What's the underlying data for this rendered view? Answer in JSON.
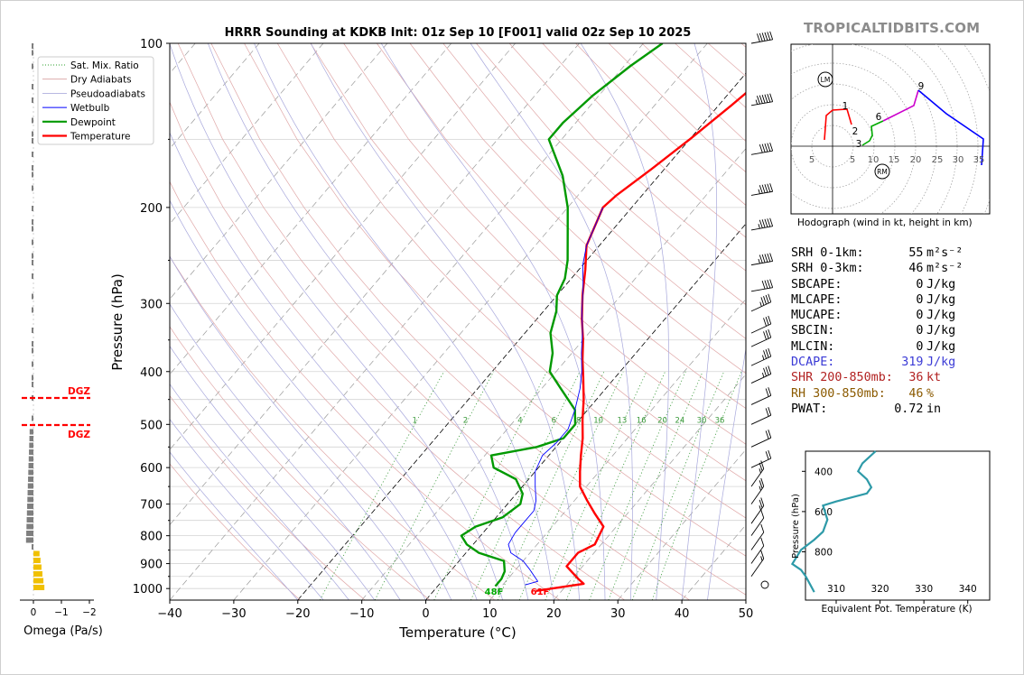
{
  "watermark": "TROPICALTIDBITS.COM",
  "chart_data": [
    {
      "type": "line",
      "title": "HRRR Sounding at KDKB Init: 01z Sep 10 [F001] valid 02z Sep 10 2025",
      "xlabel": "Temperature (°C)",
      "ylabel": "Pressure (hPa)",
      "y_scale": "log",
      "x_ticks": [
        -40,
        -30,
        -20,
        -10,
        0,
        10,
        20,
        30,
        40,
        50
      ],
      "y_ticks": [
        100,
        200,
        300,
        400,
        500,
        600,
        700,
        800,
        900,
        1000
      ],
      "ylim": [
        1050,
        100
      ],
      "xlim": [
        -40,
        50
      ],
      "grid": true,
      "legend_position": "top-left",
      "legend": [
        {
          "label": "Sat. Mix. Ratio",
          "color": "#2ca02c"
        },
        {
          "label": "Dry Adiabats",
          "color": "#d9a0a0"
        },
        {
          "label": "Pseudoadiabats",
          "color": "#a0a0d8"
        },
        {
          "label": "Wetbulb",
          "color": "#0000ff"
        },
        {
          "label": "Dewpoint",
          "color": "#009900"
        },
        {
          "label": "Temperature",
          "color": "#ff0000"
        }
      ],
      "mixing_ratio_labels": [
        "1",
        "2",
        "4",
        "6",
        "8",
        "10",
        "13",
        "16",
        "20",
        "24",
        "30",
        "36"
      ],
      "surface_labels": {
        "dewpoint": "48F",
        "temperature": "61F"
      },
      "series": [
        {
          "name": "Temperature",
          "color": "#ff0000",
          "points": [
            [
              16,
              1010
            ],
            [
              22.5,
              980
            ],
            [
              21,
              960
            ],
            [
              17.5,
              910
            ],
            [
              17.5,
              860
            ],
            [
              19,
              830
            ],
            [
              18.5,
              800
            ],
            [
              18,
              770
            ],
            [
              15,
              730
            ],
            [
              12,
              690
            ],
            [
              9,
              650
            ],
            [
              7,
              610
            ],
            [
              5,
              570
            ],
            [
              3,
              530
            ],
            [
              0.5,
              490
            ],
            [
              -2,
              450
            ],
            [
              -5,
              410
            ],
            [
              -7.5,
              380
            ],
            [
              -10,
              350
            ],
            [
              -13,
              320
            ],
            [
              -16,
              290
            ],
            [
              -19,
              260
            ],
            [
              -22,
              235
            ],
            [
              -24.5,
              200
            ],
            [
              -24,
              190
            ],
            [
              -22,
              170
            ],
            [
              -20,
              150
            ],
            [
              -18,
              130
            ],
            [
              -17,
              120
            ],
            [
              -15,
              110
            ],
            [
              -13,
              100
            ]
          ]
        },
        {
          "name": "Dewpoint",
          "color": "#009900",
          "points": [
            [
              9,
              990
            ],
            [
              9,
              960
            ],
            [
              8.5,
              930
            ],
            [
              7,
              890
            ],
            [
              2,
              860
            ],
            [
              -1,
              830
            ],
            [
              -3,
              800
            ],
            [
              -2,
              770
            ],
            [
              1,
              740
            ],
            [
              2,
              700
            ],
            [
              1,
              670
            ],
            [
              -2,
              630
            ],
            [
              -7,
              600
            ],
            [
              -9,
              570
            ],
            [
              -3,
              550
            ],
            [
              0,
              530
            ],
            [
              0,
              500
            ],
            [
              -2,
              470
            ],
            [
              -7,
              430
            ],
            [
              -11,
              400
            ],
            [
              -13,
              370
            ],
            [
              -16,
              340
            ],
            [
              -18,
              310
            ],
            [
              -20,
              290
            ],
            [
              -21,
              270
            ],
            [
              -23,
              250
            ],
            [
              -27,
              220
            ],
            [
              -30,
              200
            ],
            [
              -35,
              175
            ],
            [
              -42,
              150
            ],
            [
              -42,
              140
            ],
            [
              -41,
              125
            ],
            [
              -39,
              110
            ],
            [
              -37,
              100
            ]
          ]
        },
        {
          "name": "Wetbulb",
          "color": "#0000ff",
          "points": [
            [
              13.5,
              985
            ],
            [
              15,
              970
            ],
            [
              12,
              920
            ],
            [
              10,
              890
            ],
            [
              7,
              860
            ],
            [
              5.5,
              830
            ],
            [
              5,
              790
            ],
            [
              5,
              760
            ],
            [
              5,
              720
            ],
            [
              4,
              690
            ],
            [
              2,
              650
            ],
            [
              0,
              610
            ],
            [
              -1,
              570
            ],
            [
              -0.5,
              540
            ],
            [
              -0.5,
              510
            ],
            [
              -2,
              470
            ],
            [
              -4,
              430
            ],
            [
              -6,
              400
            ],
            [
              -8.5,
              370
            ],
            [
              -11,
              340
            ],
            [
              -14,
              310
            ],
            [
              -17,
              280
            ],
            [
              -20,
              255
            ],
            [
              -22,
              235
            ],
            [
              -24.5,
              200
            ]
          ]
        }
      ]
    },
    {
      "type": "bar",
      "xlabel": "Omega (Pa/s)",
      "x_ticks": [
        "0",
        "−1",
        "−2"
      ],
      "annotations": [
        "DGZ",
        "DGZ"
      ]
    },
    {
      "type": "line",
      "title": "Hodograph (wind in kt, height in km)",
      "ring_labels": [
        "5",
        "5",
        "10",
        "15",
        "20",
        "25",
        "30",
        "35"
      ],
      "height_labels": [
        "1",
        "2",
        "3",
        "6",
        "9"
      ],
      "markers": [
        "LM",
        "RM"
      ]
    },
    {
      "type": "line",
      "xlabel": "Equivalent Pot. Temperature (K)",
      "ylabel": "Pressure (hPa)",
      "x_ticks": [
        "310",
        "320",
        "330",
        "340"
      ],
      "y_ticks": [
        "400",
        "600",
        "800"
      ],
      "series": [
        {
          "color": "#2e9aa8",
          "points": [
            [
              319,
              300
            ],
            [
              316,
              360
            ],
            [
              315,
              400
            ],
            [
              317,
              440
            ],
            [
              318,
              480
            ],
            [
              317,
              510
            ],
            [
              310,
              550
            ],
            [
              307,
              570
            ],
            [
              308,
              640
            ],
            [
              307,
              700
            ],
            [
              305,
              740
            ],
            [
              302,
              790
            ],
            [
              300,
              860
            ],
            [
              302,
              890
            ],
            [
              303,
              920
            ],
            [
              304,
              960
            ],
            [
              305,
              1000
            ]
          ]
        }
      ]
    }
  ],
  "stats": [
    {
      "label": "SRH 0-1km:",
      "value": "55",
      "unit": "m²s⁻²",
      "color": "#000000"
    },
    {
      "label": "SRH 0-3km:",
      "value": "46",
      "unit": "m²s⁻²",
      "color": "#000000"
    },
    {
      "label": "SBCAPE:",
      "value": "0",
      "unit": "J/kg",
      "color": "#000000"
    },
    {
      "label": "MLCAPE:",
      "value": "0",
      "unit": "J/kg",
      "color": "#000000"
    },
    {
      "label": "MUCAPE:",
      "value": "0",
      "unit": "J/kg",
      "color": "#000000"
    },
    {
      "label": "SBCIN:",
      "value": "0",
      "unit": "J/kg",
      "color": "#000000"
    },
    {
      "label": "MLCIN:",
      "value": "0",
      "unit": "J/kg",
      "color": "#000000"
    },
    {
      "label": "DCAPE:",
      "value": "319",
      "unit": "J/kg",
      "color": "#3b3bd6"
    },
    {
      "label": "SHR 200-850mb:",
      "value": "36",
      "unit": "kt",
      "color": "#b22222"
    },
    {
      "label": "RH 300-850mb:",
      "value": "46",
      "unit": "%",
      "color": "#8b5a00"
    },
    {
      "label": "PWAT:",
      "value": "0.72",
      "unit": "in",
      "color": "#000000"
    }
  ]
}
